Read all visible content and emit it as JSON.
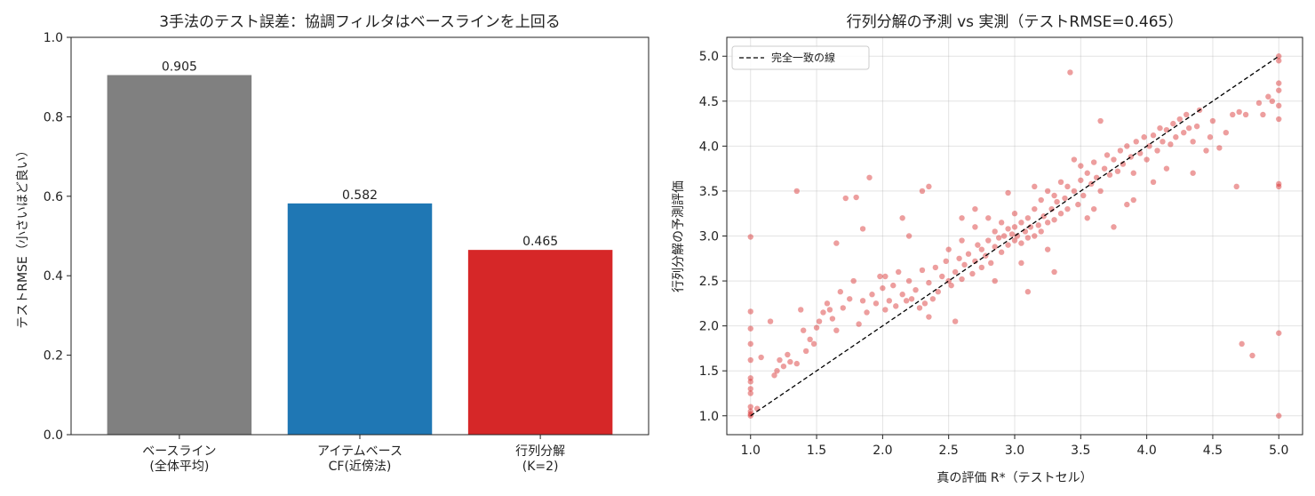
{
  "chart_data": [
    {
      "type": "bar",
      "title": "3手法のテスト誤差：協調フィルタはベースラインを上回る",
      "xlabel": "",
      "ylabel": "テストRMSE（小さいほど良い）",
      "ylim": [
        0,
        1.0
      ],
      "yticks": [
        "0.0",
        "0.2",
        "0.4",
        "0.6",
        "0.8",
        "1.0"
      ],
      "categories": [
        [
          "ベースライン",
          "(全体平均)"
        ],
        [
          "アイテムベース",
          "CF(近傍法)"
        ],
        [
          "行列分解",
          "(K=2)"
        ]
      ],
      "values": [
        0.905,
        0.582,
        0.465
      ],
      "value_labels": [
        "0.905",
        "0.582",
        "0.465"
      ],
      "colors": [
        "#808080",
        "#1f77b4",
        "#d62728"
      ],
      "grid": false
    },
    {
      "type": "scatter",
      "title": "行列分解の予測 vs 実測（テストRMSE=0.465）",
      "xlabel": "真の評価 R*（テストセル）",
      "ylabel": "行列分解の予測評価",
      "xlim": [
        0.82,
        5.18
      ],
      "ylim": [
        0.79,
        5.21
      ],
      "xticks": [
        "1.0",
        "1.5",
        "2.0",
        "2.5",
        "3.0",
        "3.5",
        "4.0",
        "4.5",
        "5.0"
      ],
      "yticks": [
        "1.0",
        "1.5",
        "2.0",
        "2.5",
        "3.0",
        "3.5",
        "4.0",
        "4.5",
        "5.0"
      ],
      "grid": true,
      "legend": {
        "entries": [
          "完全一致の線"
        ],
        "position": "top-left"
      },
      "reference_line": {
        "from": [
          1.0,
          1.0
        ],
        "to": [
          5.0,
          5.0
        ],
        "style": "dashed",
        "color": "#000000"
      },
      "point_color": "#d62728",
      "points": [
        [
          1.0,
          1.0
        ],
        [
          1.0,
          1.02
        ],
        [
          1.0,
          1.05
        ],
        [
          1.0,
          1.1
        ],
        [
          1.0,
          1.25
        ],
        [
          1.0,
          1.3
        ],
        [
          1.0,
          1.38
        ],
        [
          1.0,
          1.42
        ],
        [
          1.0,
          1.62
        ],
        [
          1.0,
          1.8
        ],
        [
          1.0,
          1.97
        ],
        [
          1.0,
          2.16
        ],
        [
          1.0,
          2.99
        ],
        [
          1.05,
          1.08
        ],
        [
          1.08,
          1.65
        ],
        [
          1.15,
          2.05
        ],
        [
          1.18,
          1.45
        ],
        [
          1.2,
          1.5
        ],
        [
          1.22,
          1.62
        ],
        [
          1.25,
          1.55
        ],
        [
          1.28,
          1.68
        ],
        [
          1.3,
          1.6
        ],
        [
          1.35,
          1.58
        ],
        [
          1.35,
          3.5
        ],
        [
          1.38,
          2.18
        ],
        [
          1.4,
          1.95
        ],
        [
          1.42,
          1.72
        ],
        [
          1.45,
          1.85
        ],
        [
          1.48,
          1.8
        ],
        [
          1.5,
          1.98
        ],
        [
          1.52,
          2.05
        ],
        [
          1.55,
          2.15
        ],
        [
          1.58,
          2.25
        ],
        [
          1.6,
          2.18
        ],
        [
          1.62,
          2.08
        ],
        [
          1.65,
          1.95
        ],
        [
          1.65,
          2.92
        ],
        [
          1.68,
          2.38
        ],
        [
          1.7,
          2.2
        ],
        [
          1.72,
          3.42
        ],
        [
          1.75,
          2.3
        ],
        [
          1.78,
          2.5
        ],
        [
          1.8,
          3.43
        ],
        [
          1.82,
          2.02
        ],
        [
          1.85,
          2.28
        ],
        [
          1.85,
          3.08
        ],
        [
          1.88,
          2.15
        ],
        [
          1.9,
          3.65
        ],
        [
          1.92,
          2.35
        ],
        [
          1.95,
          2.25
        ],
        [
          1.98,
          2.55
        ],
        [
          2.0,
          2.42
        ],
        [
          2.02,
          2.18
        ],
        [
          2.02,
          2.55
        ],
        [
          2.05,
          2.28
        ],
        [
          2.08,
          2.45
        ],
        [
          2.1,
          2.22
        ],
        [
          2.12,
          2.6
        ],
        [
          2.15,
          2.35
        ],
        [
          2.15,
          3.2
        ],
        [
          2.18,
          2.28
        ],
        [
          2.2,
          2.5
        ],
        [
          2.2,
          3.0
        ],
        [
          2.22,
          2.3
        ],
        [
          2.25,
          2.4
        ],
        [
          2.28,
          2.2
        ],
        [
          2.3,
          2.62
        ],
        [
          2.3,
          3.5
        ],
        [
          2.32,
          2.25
        ],
        [
          2.35,
          2.48
        ],
        [
          2.35,
          3.55
        ],
        [
          2.38,
          2.3
        ],
        [
          2.4,
          2.65
        ],
        [
          2.42,
          2.38
        ],
        [
          2.45,
          2.55
        ],
        [
          2.48,
          2.72
        ],
        [
          2.5,
          2.5
        ],
        [
          2.5,
          2.85
        ],
        [
          2.52,
          2.45
        ],
        [
          2.55,
          2.6
        ],
        [
          2.58,
          2.75
        ],
        [
          2.6,
          2.52
        ],
        [
          2.6,
          2.95
        ],
        [
          2.62,
          2.68
        ],
        [
          2.65,
          2.8
        ],
        [
          2.68,
          2.58
        ],
        [
          2.7,
          2.72
        ],
        [
          2.7,
          3.1
        ],
        [
          2.72,
          2.9
        ],
        [
          2.75,
          2.65
        ],
        [
          2.75,
          2.85
        ],
        [
          2.78,
          2.78
        ],
        [
          2.8,
          2.95
        ],
        [
          2.8,
          3.2
        ],
        [
          2.82,
          2.7
        ],
        [
          2.85,
          2.88
        ],
        [
          2.85,
          3.05
        ],
        [
          2.88,
          2.98
        ],
        [
          2.9,
          2.82
        ],
        [
          2.9,
          3.15
        ],
        [
          2.92,
          3.0
        ],
        [
          2.95,
          2.9
        ],
        [
          2.95,
          3.08
        ],
        [
          2.98,
          3.02
        ],
        [
          3.0,
          2.95
        ],
        [
          3.0,
          3.1
        ],
        [
          3.0,
          3.25
        ],
        [
          3.02,
          3.0
        ],
        [
          3.05,
          2.92
        ],
        [
          3.05,
          3.15
        ],
        [
          3.08,
          3.05
        ],
        [
          3.1,
          2.98
        ],
        [
          3.1,
          3.2
        ],
        [
          3.12,
          3.1
        ],
        [
          3.15,
          3.0
        ],
        [
          3.15,
          3.3
        ],
        [
          3.18,
          3.12
        ],
        [
          3.2,
          3.05
        ],
        [
          3.2,
          3.4
        ],
        [
          3.22,
          3.22
        ],
        [
          3.25,
          3.15
        ],
        [
          3.25,
          3.5
        ],
        [
          3.28,
          3.3
        ],
        [
          3.3,
          3.18
        ],
        [
          3.3,
          3.45
        ],
        [
          3.32,
          3.38
        ],
        [
          3.35,
          3.25
        ],
        [
          3.35,
          3.6
        ],
        [
          3.38,
          3.42
        ],
        [
          3.4,
          3.3
        ],
        [
          3.4,
          3.55
        ],
        [
          3.42,
          4.82
        ],
        [
          3.45,
          3.5
        ],
        [
          3.48,
          3.35
        ],
        [
          3.5,
          3.62
        ],
        [
          3.5,
          3.78
        ],
        [
          3.52,
          3.45
        ],
        [
          3.55,
          3.7
        ],
        [
          3.58,
          3.58
        ],
        [
          3.6,
          3.82
        ],
        [
          3.62,
          3.65
        ],
        [
          3.65,
          3.5
        ],
        [
          3.65,
          4.28
        ],
        [
          3.68,
          3.75
        ],
        [
          3.7,
          3.9
        ],
        [
          3.72,
          3.68
        ],
        [
          3.75,
          3.85
        ],
        [
          3.78,
          3.72
        ],
        [
          3.8,
          3.95
        ],
        [
          3.82,
          3.8
        ],
        [
          3.85,
          4.0
        ],
        [
          3.88,
          3.88
        ],
        [
          3.9,
          3.7
        ],
        [
          3.92,
          4.05
        ],
        [
          3.95,
          3.92
        ],
        [
          3.98,
          4.1
        ],
        [
          4.0,
          3.85
        ],
        [
          4.02,
          4.0
        ],
        [
          4.05,
          4.12
        ],
        [
          4.08,
          3.95
        ],
        [
          4.1,
          4.2
        ],
        [
          4.12,
          4.05
        ],
        [
          4.15,
          4.18
        ],
        [
          4.18,
          4.02
        ],
        [
          4.2,
          4.25
        ],
        [
          4.22,
          4.1
        ],
        [
          4.25,
          4.3
        ],
        [
          4.28,
          4.15
        ],
        [
          4.3,
          4.35
        ],
        [
          4.32,
          4.2
        ],
        [
          4.35,
          4.05
        ],
        [
          4.38,
          4.22
        ],
        [
          4.4,
          4.4
        ],
        [
          4.45,
          3.95
        ],
        [
          4.48,
          4.1
        ],
        [
          4.5,
          4.28
        ],
        [
          4.55,
          3.98
        ],
        [
          4.6,
          4.15
        ],
        [
          4.65,
          4.35
        ],
        [
          4.68,
          3.55
        ],
        [
          4.7,
          4.38
        ],
        [
          4.72,
          1.8
        ],
        [
          4.75,
          4.35
        ],
        [
          4.8,
          1.67
        ],
        [
          4.85,
          4.48
        ],
        [
          4.88,
          4.35
        ],
        [
          4.92,
          4.55
        ],
        [
          4.95,
          4.5
        ],
        [
          5.0,
          1.0
        ],
        [
          5.0,
          1.92
        ],
        [
          5.0,
          3.55
        ],
        [
          5.0,
          3.58
        ],
        [
          5.0,
          4.3
        ],
        [
          5.0,
          4.45
        ],
        [
          5.0,
          4.62
        ],
        [
          5.0,
          4.7
        ],
        [
          5.0,
          4.95
        ],
        [
          5.0,
          5.0
        ],
        [
          3.1,
          2.38
        ],
        [
          2.85,
          2.5
        ],
        [
          3.3,
          2.6
        ],
        [
          2.6,
          3.2
        ],
        [
          3.6,
          3.3
        ],
        [
          3.9,
          3.4
        ],
        [
          3.75,
          3.1
        ],
        [
          4.15,
          3.75
        ],
        [
          2.35,
          2.1
        ],
        [
          2.55,
          2.05
        ],
        [
          2.95,
          3.48
        ],
        [
          3.15,
          3.55
        ],
        [
          3.45,
          3.85
        ],
        [
          2.7,
          3.3
        ],
        [
          3.05,
          2.7
        ],
        [
          3.25,
          2.85
        ],
        [
          3.55,
          3.2
        ],
        [
          3.85,
          3.35
        ],
        [
          4.05,
          3.6
        ],
        [
          4.35,
          3.7
        ]
      ]
    }
  ]
}
